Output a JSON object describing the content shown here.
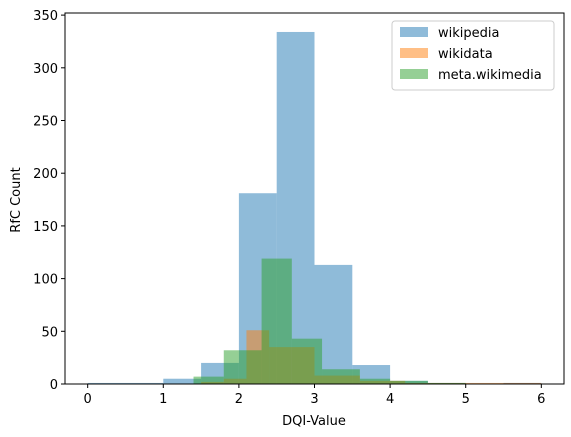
{
  "chart_data": {
    "type": "histogram",
    "xlabel": "DQI-Value",
    "ylabel": "RfC Count",
    "xlim": [
      -0.3,
      6.3
    ],
    "ylim": [
      0,
      352
    ],
    "xticks": [
      0,
      1,
      2,
      3,
      4,
      5,
      6
    ],
    "yticks": [
      0,
      50,
      100,
      150,
      200,
      250,
      300,
      350
    ],
    "grid": false,
    "legend_position": "top-right",
    "series": [
      {
        "name": "wikipedia",
        "color": "#1f77b4",
        "opacity": 0.5,
        "bins": [
          [
            0,
            0.5,
            1
          ],
          [
            0.5,
            1,
            1
          ],
          [
            1,
            1.5,
            5
          ],
          [
            1.5,
            2,
            20
          ],
          [
            2,
            2.5,
            181
          ],
          [
            2.5,
            3,
            334
          ],
          [
            3,
            3.5,
            113
          ],
          [
            3.5,
            4,
            18
          ],
          [
            4,
            4.5,
            3
          ],
          [
            4.5,
            5,
            1
          ],
          [
            5,
            5.5,
            0
          ],
          [
            5.5,
            6,
            1
          ]
        ]
      },
      {
        "name": "wikidata",
        "color": "#ff7f0e",
        "opacity": 0.5,
        "bins": [
          [
            1.5,
            1.8,
            2
          ],
          [
            1.8,
            2.1,
            5
          ],
          [
            2.1,
            2.4,
            51
          ],
          [
            2.4,
            2.7,
            35
          ],
          [
            2.7,
            3,
            35
          ],
          [
            3,
            3.6,
            8
          ],
          [
            3.6,
            4.2,
            3
          ],
          [
            4.2,
            4.8,
            1
          ],
          [
            4.8,
            5.4,
            1
          ],
          [
            5.4,
            6,
            1
          ]
        ]
      },
      {
        "name": "meta.wikimedia",
        "color": "#2ca02c",
        "opacity": 0.5,
        "bins": [
          [
            1.4,
            1.8,
            7
          ],
          [
            1.8,
            2.0,
            32
          ],
          [
            2.0,
            2.3,
            32
          ],
          [
            2.3,
            2.7,
            119
          ],
          [
            2.7,
            3.1,
            43
          ],
          [
            3.1,
            3.6,
            14
          ],
          [
            3.6,
            4.0,
            5
          ],
          [
            4.0,
            4.5,
            3
          ],
          [
            4.5,
            5.0,
            1
          ]
        ]
      }
    ]
  }
}
